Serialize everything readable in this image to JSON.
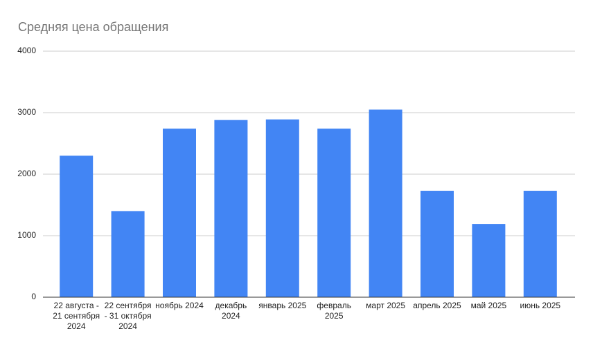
{
  "chart_data": {
    "type": "bar",
    "title": "Средняя цена обращения",
    "categories": [
      "22 августа - 21 сентября 2024",
      "22 сентября - 31 октября 2024",
      "ноябрь 2024",
      "декабрь 2024",
      "январь 2025",
      "февраль 2025",
      "март 2025",
      "апрель 2025",
      "май 2025",
      "июнь 2025"
    ],
    "values": [
      2300,
      1400,
      2740,
      2880,
      2890,
      2740,
      3050,
      1730,
      1190,
      1730
    ],
    "color": "#4285f4",
    "ylim": [
      0,
      4000
    ],
    "yticks": [
      0,
      1000,
      2000,
      3000,
      4000
    ],
    "grid": true
  }
}
